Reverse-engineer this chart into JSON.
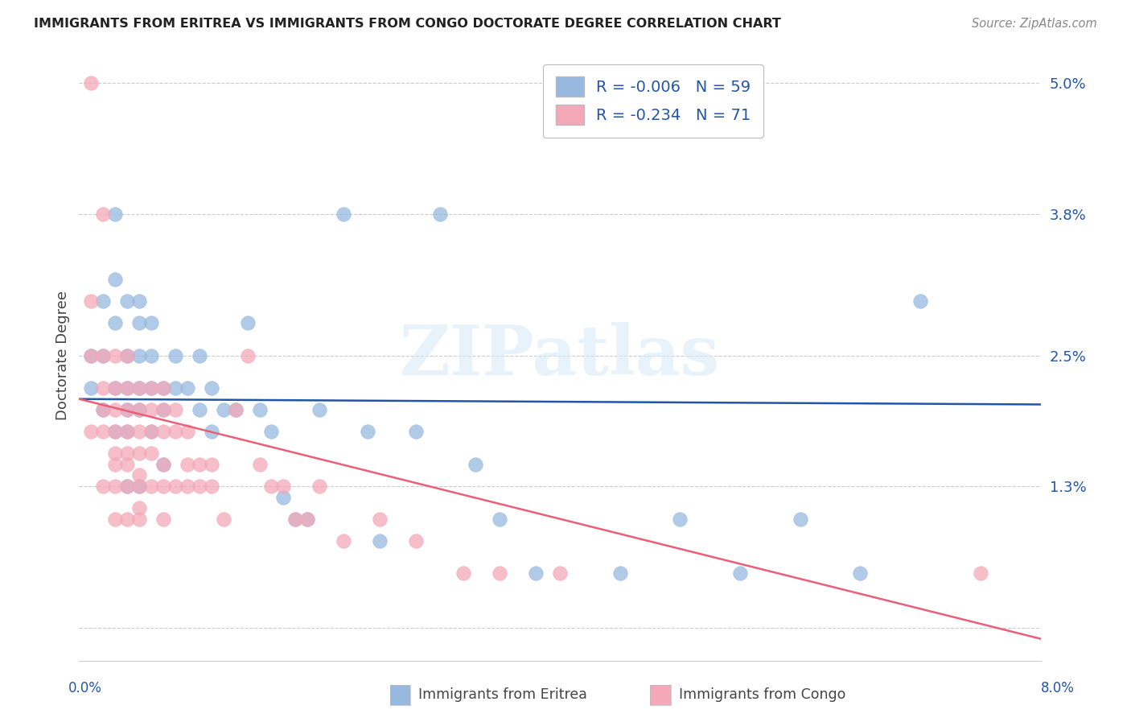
{
  "title": "IMMIGRANTS FROM ERITREA VS IMMIGRANTS FROM CONGO DOCTORATE DEGREE CORRELATION CHART",
  "source": "Source: ZipAtlas.com",
  "ylabel": "Doctorate Degree",
  "y_ticks": [
    0.0,
    0.013,
    0.025,
    0.038,
    0.05
  ],
  "y_tick_labels": [
    "",
    "1.3%",
    "2.5%",
    "3.8%",
    "5.0%"
  ],
  "x_min": 0.0,
  "x_max": 0.08,
  "y_min": -0.003,
  "y_max": 0.053,
  "eritrea_color": "#97b9e0",
  "congo_color": "#f4a8b8",
  "eritrea_line_color": "#2255aa",
  "congo_line_color": "#e8607a",
  "legend_R_eritrea": "R = -0.006",
  "legend_N_eritrea": "N = 59",
  "legend_R_congo": "R = -0.234",
  "legend_N_congo": "N = 71",
  "legend_text_color": "#2255aa",
  "watermark": "ZIPatlas",
  "background_color": "#ffffff",
  "grid_color": "#cccccc",
  "eritrea_line_start_y": 0.021,
  "eritrea_line_end_y": 0.0205,
  "congo_line_start_y": 0.021,
  "congo_line_end_y": -0.001,
  "eritrea_x": [
    0.001,
    0.001,
    0.002,
    0.002,
    0.002,
    0.003,
    0.003,
    0.003,
    0.003,
    0.003,
    0.004,
    0.004,
    0.004,
    0.004,
    0.004,
    0.004,
    0.005,
    0.005,
    0.005,
    0.005,
    0.005,
    0.005,
    0.006,
    0.006,
    0.006,
    0.006,
    0.007,
    0.007,
    0.007,
    0.008,
    0.008,
    0.009,
    0.01,
    0.01,
    0.011,
    0.011,
    0.012,
    0.013,
    0.014,
    0.015,
    0.016,
    0.017,
    0.018,
    0.019,
    0.02,
    0.022,
    0.024,
    0.025,
    0.028,
    0.03,
    0.033,
    0.035,
    0.038,
    0.045,
    0.05,
    0.055,
    0.06,
    0.065,
    0.07
  ],
  "eritrea_y": [
    0.025,
    0.022,
    0.03,
    0.025,
    0.02,
    0.038,
    0.032,
    0.028,
    0.022,
    0.018,
    0.03,
    0.025,
    0.022,
    0.02,
    0.018,
    0.013,
    0.03,
    0.028,
    0.025,
    0.022,
    0.02,
    0.013,
    0.028,
    0.025,
    0.022,
    0.018,
    0.022,
    0.02,
    0.015,
    0.025,
    0.022,
    0.022,
    0.025,
    0.02,
    0.022,
    0.018,
    0.02,
    0.02,
    0.028,
    0.02,
    0.018,
    0.012,
    0.01,
    0.01,
    0.02,
    0.038,
    0.018,
    0.008,
    0.018,
    0.038,
    0.015,
    0.01,
    0.005,
    0.005,
    0.01,
    0.005,
    0.01,
    0.005,
    0.03
  ],
  "congo_x": [
    0.001,
    0.001,
    0.001,
    0.001,
    0.002,
    0.002,
    0.002,
    0.002,
    0.002,
    0.002,
    0.003,
    0.003,
    0.003,
    0.003,
    0.003,
    0.003,
    0.003,
    0.003,
    0.004,
    0.004,
    0.004,
    0.004,
    0.004,
    0.004,
    0.004,
    0.004,
    0.005,
    0.005,
    0.005,
    0.005,
    0.005,
    0.005,
    0.005,
    0.005,
    0.006,
    0.006,
    0.006,
    0.006,
    0.006,
    0.007,
    0.007,
    0.007,
    0.007,
    0.007,
    0.007,
    0.008,
    0.008,
    0.008,
    0.009,
    0.009,
    0.009,
    0.01,
    0.01,
    0.011,
    0.011,
    0.012,
    0.013,
    0.014,
    0.015,
    0.016,
    0.017,
    0.018,
    0.019,
    0.02,
    0.022,
    0.025,
    0.028,
    0.032,
    0.035,
    0.04,
    0.075
  ],
  "congo_y": [
    0.05,
    0.03,
    0.025,
    0.018,
    0.038,
    0.025,
    0.022,
    0.02,
    0.018,
    0.013,
    0.025,
    0.022,
    0.02,
    0.018,
    0.016,
    0.015,
    0.013,
    0.01,
    0.025,
    0.022,
    0.02,
    0.018,
    0.016,
    0.015,
    0.013,
    0.01,
    0.022,
    0.02,
    0.018,
    0.016,
    0.014,
    0.013,
    0.011,
    0.01,
    0.022,
    0.02,
    0.018,
    0.016,
    0.013,
    0.022,
    0.02,
    0.018,
    0.015,
    0.013,
    0.01,
    0.02,
    0.018,
    0.013,
    0.018,
    0.015,
    0.013,
    0.015,
    0.013,
    0.015,
    0.013,
    0.01,
    0.02,
    0.025,
    0.015,
    0.013,
    0.013,
    0.01,
    0.01,
    0.013,
    0.008,
    0.01,
    0.008,
    0.005,
    0.005,
    0.005,
    0.005
  ]
}
